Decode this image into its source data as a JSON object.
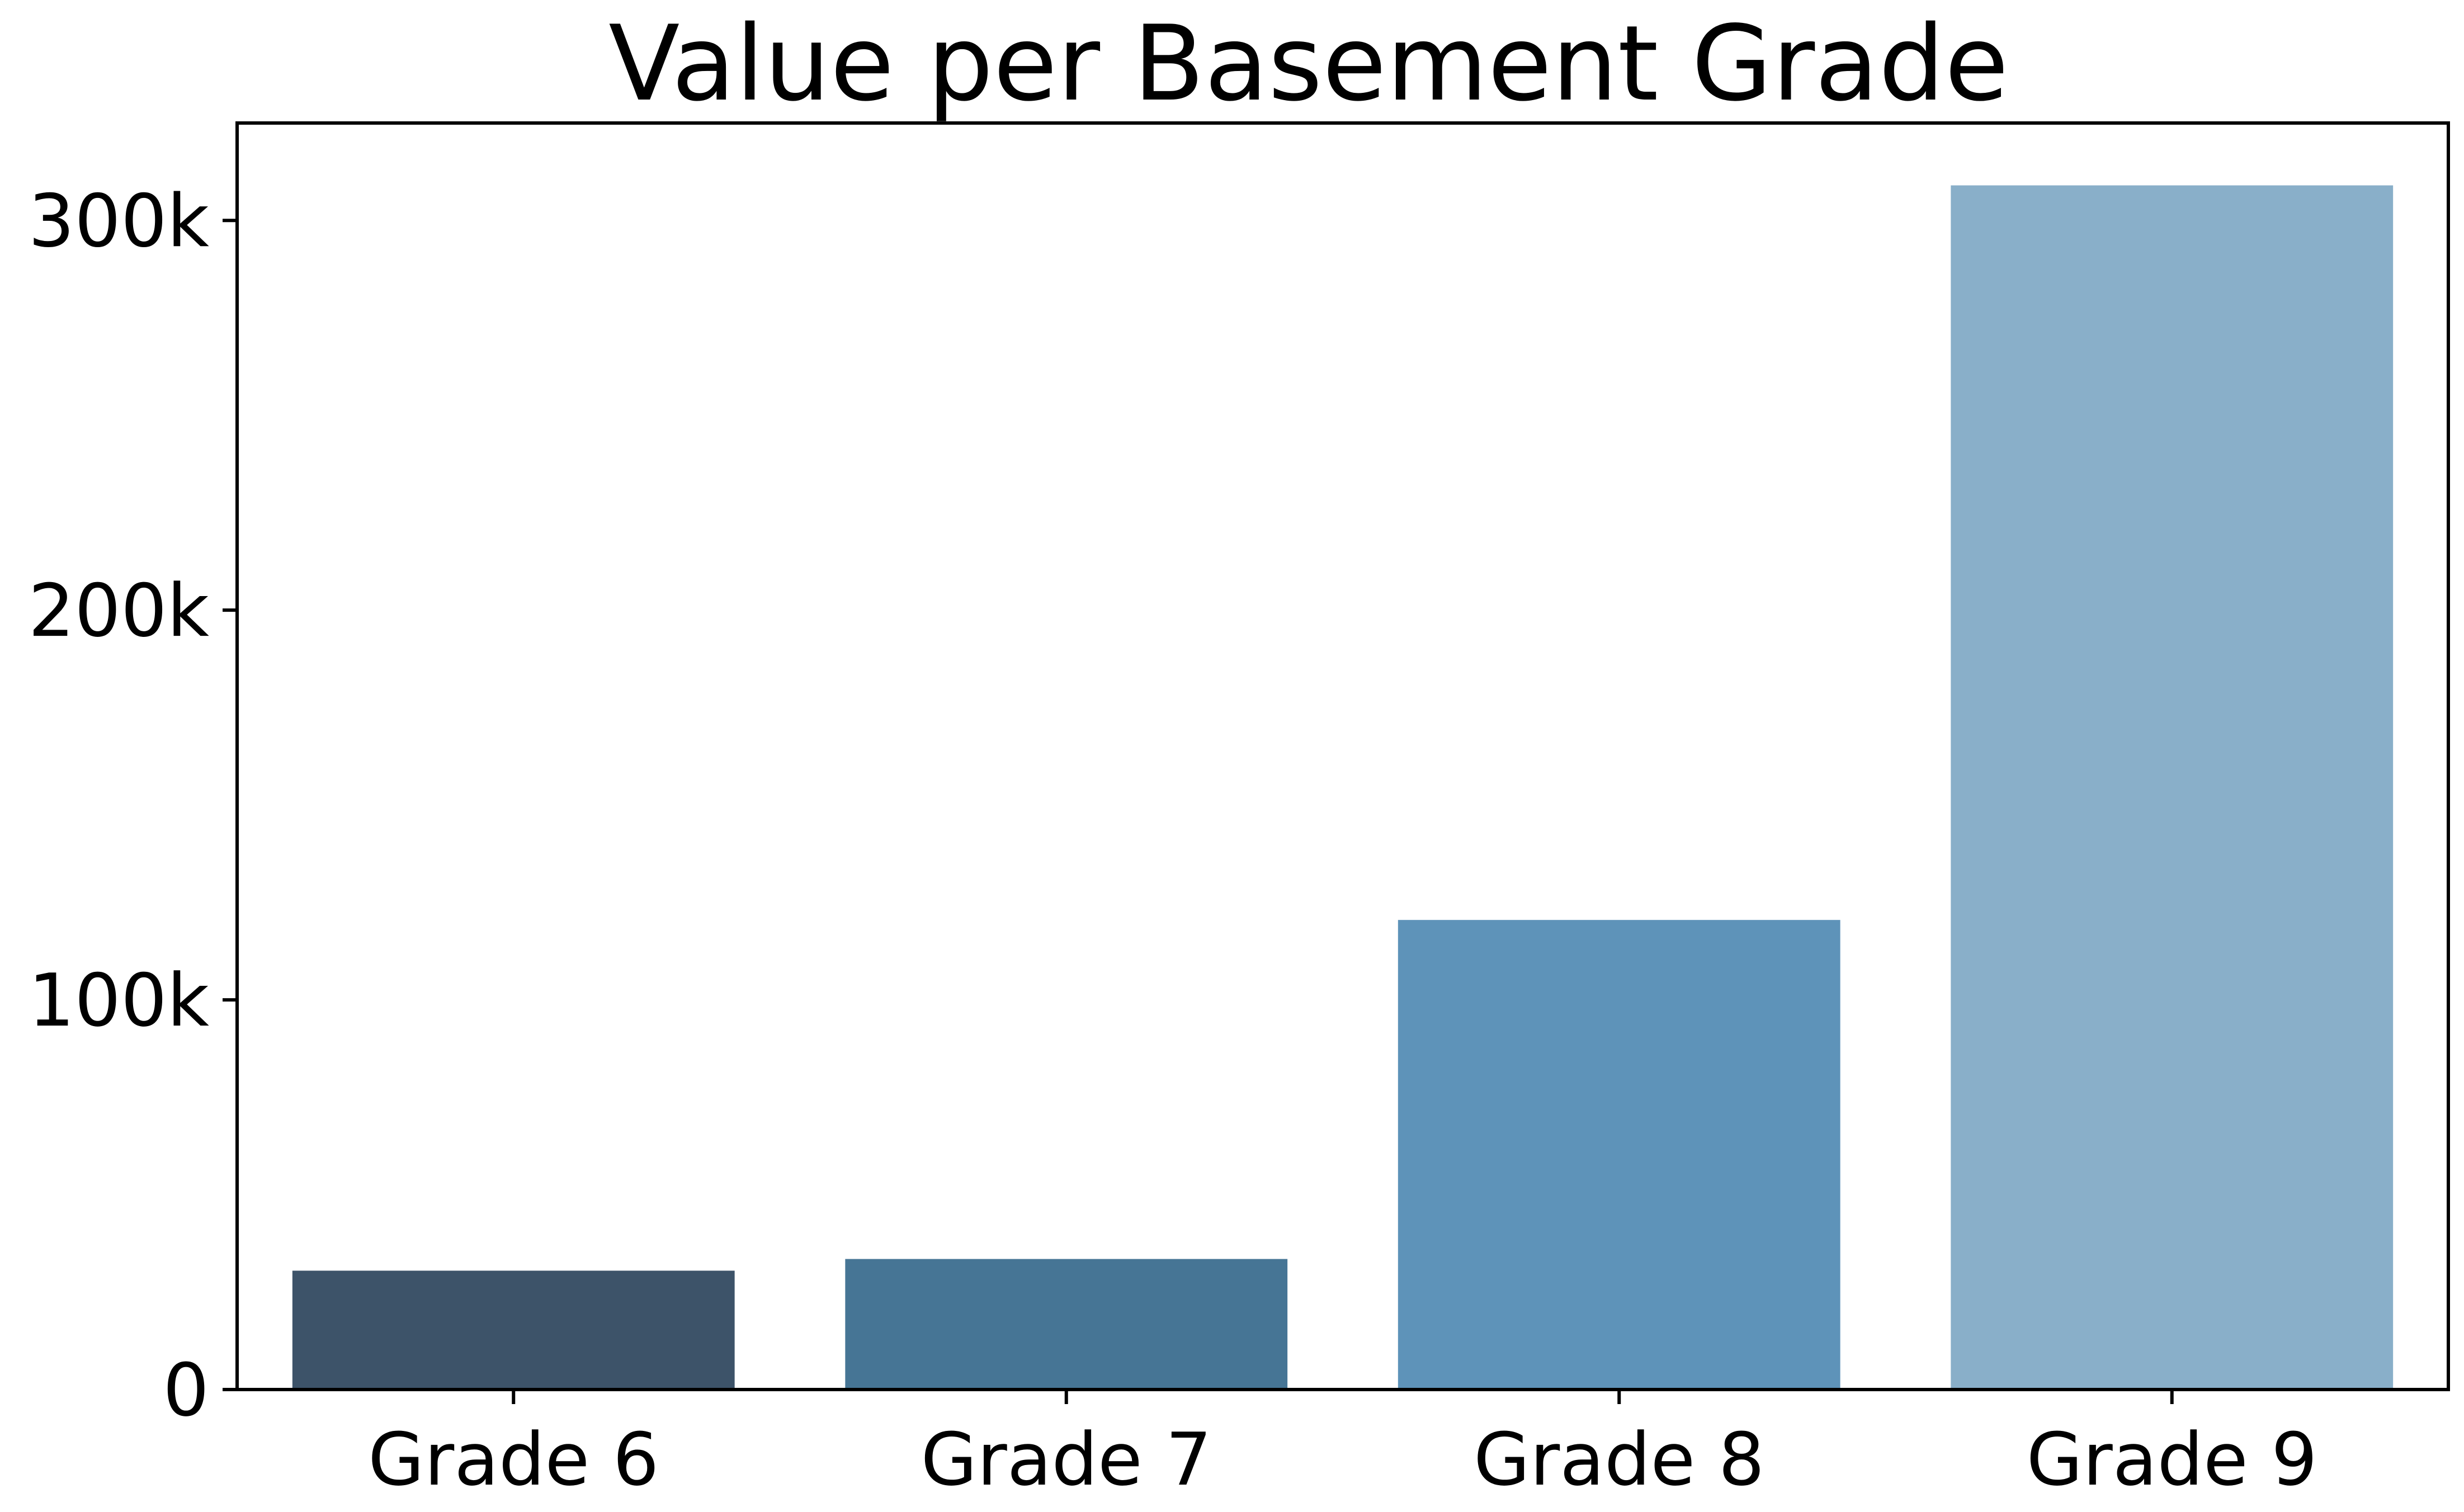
{
  "chart_data": {
    "type": "bar",
    "title": "Value per Basement Grade",
    "xlabel": "",
    "ylabel": "",
    "categories": [
      "Grade 6",
      "Grade 7",
      "Grade 8",
      "Grade 9"
    ],
    "values": [
      30500,
      33500,
      120500,
      309000
    ],
    "colors": [
      "#3d5369",
      "#467595",
      "#5e93b9",
      "#89afc9"
    ],
    "ylim": [
      0,
      325000
    ],
    "yticks": [
      0,
      100000,
      200000,
      300000
    ],
    "ytick_labels": [
      "0",
      "100k",
      "200k",
      "300k"
    ],
    "grid": false,
    "legend": "none"
  }
}
